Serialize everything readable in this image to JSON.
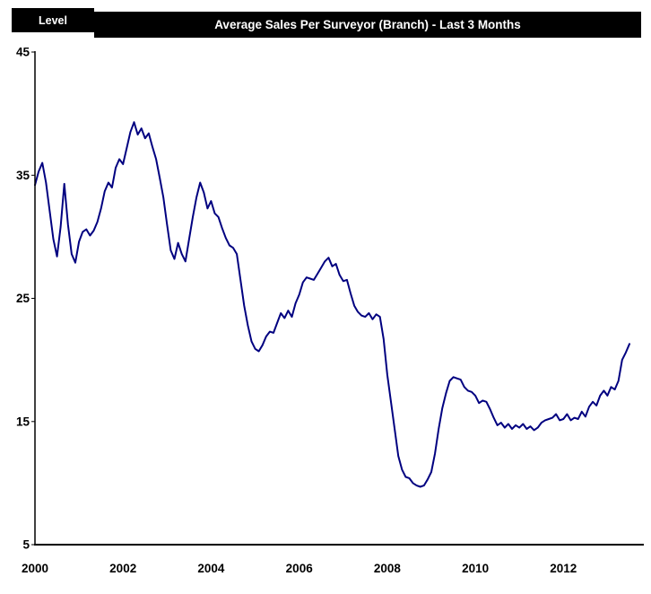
{
  "header": {
    "axis_unit_label": "Level",
    "title": "Average Sales Per Surveyor (Branch) - Last 3 Months"
  },
  "colors": {
    "header_bg": "#000000",
    "header_text": "#ffffff",
    "axis": "#000000",
    "line": "#000080",
    "background": "#ffffff"
  },
  "chart_data": {
    "type": "line",
    "title": "Average Sales Per Surveyor (Branch) - Last 3 Months",
    "ylabel": "Level",
    "xlabel": "",
    "grid": false,
    "legend": "none",
    "ylim": [
      5,
      45
    ],
    "y_tick_labels": [
      "45",
      "35",
      "25",
      "15",
      "5"
    ],
    "x_tick_labels": [
      "2000",
      "2002",
      "2004",
      "2006",
      "2008",
      "2010",
      "2012"
    ],
    "x_start_year": 2000,
    "points_per_year": 12,
    "series_name": "Average sales per surveyor (branch), 3-month average",
    "values": [
      34.2,
      35.3,
      36.0,
      34.4,
      32.1,
      29.8,
      28.4,
      30.8,
      34.3,
      31.0,
      28.6,
      27.9,
      29.6,
      30.4,
      30.6,
      30.1,
      30.5,
      31.2,
      32.3,
      33.7,
      34.4,
      34.0,
      35.6,
      36.3,
      35.9,
      37.2,
      38.5,
      39.3,
      38.3,
      38.8,
      38.0,
      38.4,
      37.3,
      36.3,
      34.8,
      33.2,
      31.0,
      28.9,
      28.2,
      29.5,
      28.6,
      28.0,
      29.8,
      31.6,
      33.2,
      34.4,
      33.6,
      32.3,
      32.9,
      31.9,
      31.6,
      30.7,
      29.9,
      29.3,
      29.1,
      28.6,
      26.5,
      24.4,
      22.8,
      21.5,
      20.9,
      20.7,
      21.2,
      21.9,
      22.3,
      22.2,
      23.0,
      23.8,
      23.4,
      24.0,
      23.5,
      24.6,
      25.3,
      26.3,
      26.7,
      26.6,
      26.5,
      27.0,
      27.5,
      28.0,
      28.3,
      27.6,
      27.8,
      26.9,
      26.4,
      26.5,
      25.4,
      24.4,
      23.9,
      23.6,
      23.5,
      23.8,
      23.3,
      23.7,
      23.5,
      21.7,
      18.8,
      16.6,
      14.4,
      12.2,
      11.1,
      10.5,
      10.4,
      10.0,
      9.8,
      9.7,
      9.8,
      10.3,
      10.9,
      12.4,
      14.4,
      16.1,
      17.3,
      18.3,
      18.6,
      18.5,
      18.4,
      17.8,
      17.5,
      17.4,
      17.1,
      16.5,
      16.7,
      16.6,
      16.0,
      15.3,
      14.7,
      14.9,
      14.5,
      14.8,
      14.4,
      14.7,
      14.5,
      14.8,
      14.4,
      14.6,
      14.3,
      14.5,
      14.9,
      15.1,
      15.2,
      15.3,
      15.6,
      15.1,
      15.2,
      15.6,
      15.1,
      15.3,
      15.2,
      15.8,
      15.4,
      16.2,
      16.6,
      16.3,
      17.1,
      17.5,
      17.1,
      17.8,
      17.6,
      18.3,
      20.0,
      20.6,
      21.3
    ]
  }
}
